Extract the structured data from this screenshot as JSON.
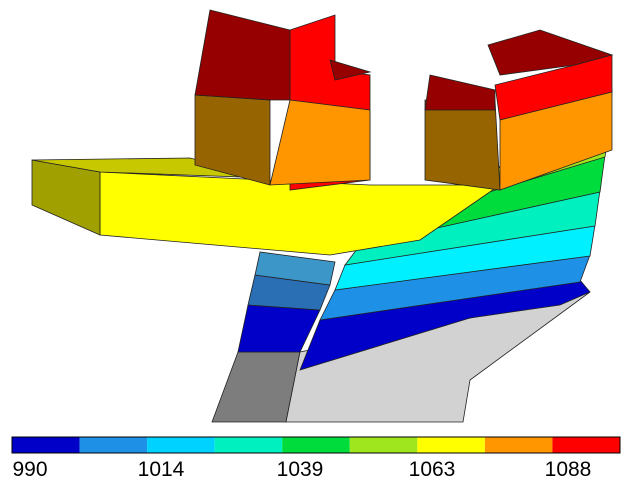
{
  "legend": {
    "colors": [
      "#0000c8",
      "#1e90e6",
      "#00d2ff",
      "#00f0c0",
      "#00dc3c",
      "#a0e61e",
      "#ffff00",
      "#ff9600",
      "#ff0000"
    ],
    "tick_labels": [
      "990",
      "1014",
      "1039",
      "1063",
      "1088"
    ]
  }
}
